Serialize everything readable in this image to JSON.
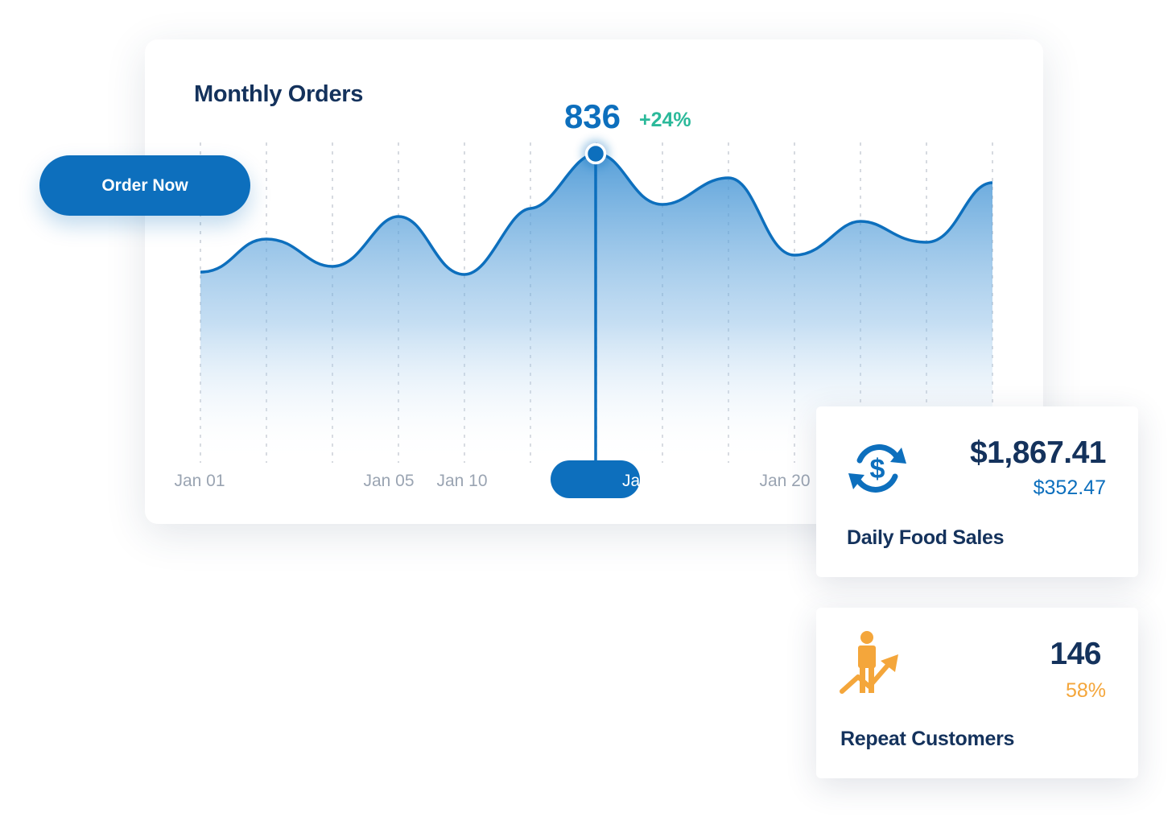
{
  "monthly_orders": {
    "title": "Monthly Orders",
    "highlight_value": "836",
    "highlight_change": "+24%",
    "active_tick_label": "Ja",
    "x_labels": [
      "Jan 01",
      "Jan 05",
      "Jan 10",
      "Jan 20"
    ]
  },
  "order_button": {
    "label": "Order Now"
  },
  "daily_food_sales": {
    "amount": "$1,867.41",
    "sub_amount": "$352.47",
    "label": "Daily Food Sales",
    "icon": "currency-exchange-icon"
  },
  "repeat_customers": {
    "count": "146",
    "percent": "58%",
    "label": "Repeat Customers",
    "icon": "person-growth-icon"
  },
  "colors": {
    "primary_blue": "#0d6fbd",
    "navy_text": "#14325c",
    "positive_green": "#2bb99a",
    "accent_orange": "#f4a63b",
    "muted_label": "#9aa4b2"
  }
}
